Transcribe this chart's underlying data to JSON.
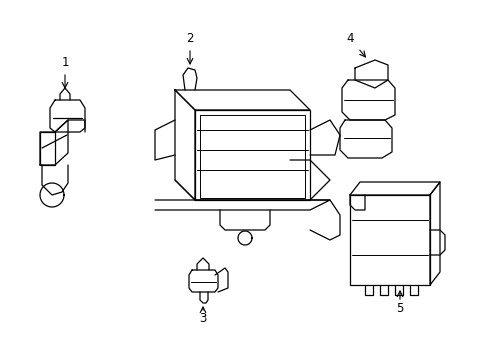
{
  "background_color": "#ffffff",
  "line_color": "#000000",
  "line_width": 0.9,
  "fig_width": 4.89,
  "fig_height": 3.6,
  "dpi": 100
}
